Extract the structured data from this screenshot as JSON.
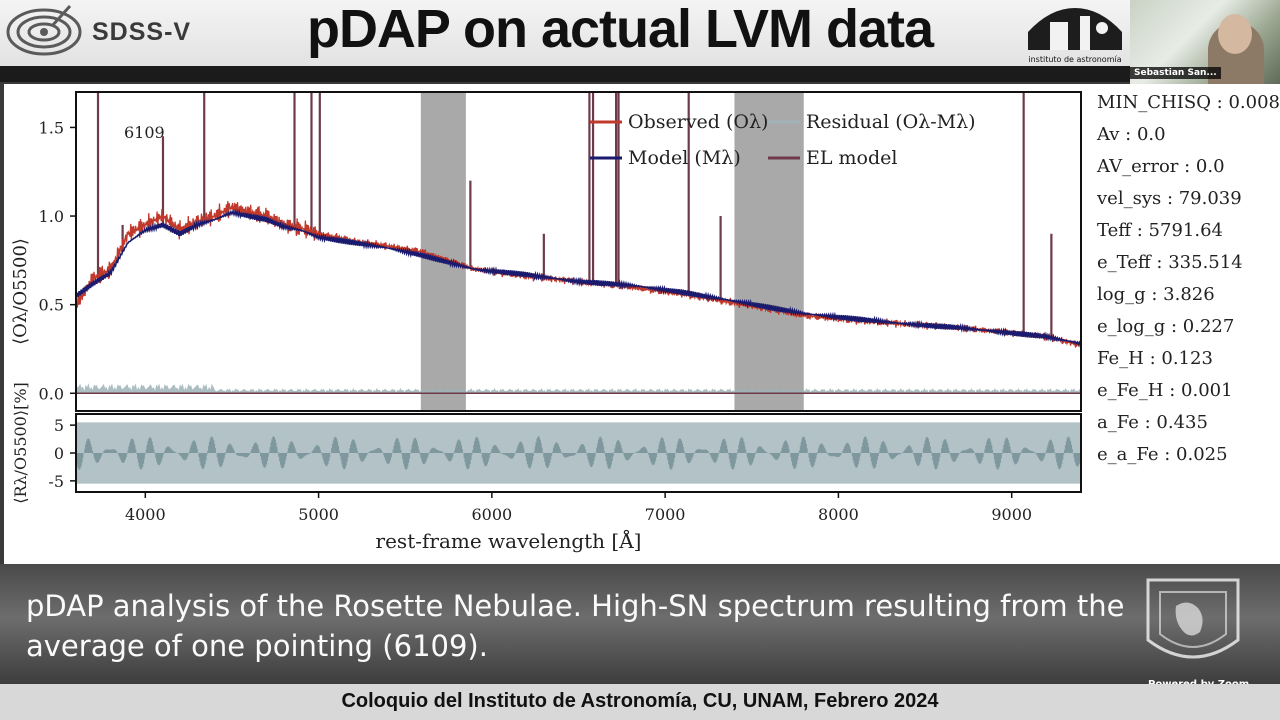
{
  "header": {
    "logo_text": "SDSS-V",
    "title": "pDAP on actual LVM data",
    "institute_text": "instituto de astronomía"
  },
  "video": {
    "participant": "Sebastian San..."
  },
  "params": [
    "MIN_CHISQ : 0.008",
    "Av : 0.0",
    "AV_error : 0.0",
    "vel_sys : 79.039",
    "Teff : 5791.64",
    "e_Teff : 335.514",
    "log_g : 3.826",
    "e_log_g : 0.227",
    "Fe_H : 0.123",
    "e_Fe_H : 0.001",
    "a_Fe : 0.435",
    "e_a_Fe : 0.025"
  ],
  "caption": "pDAP analysis of the Rosette Nebulae. High-SN spectrum resulting from the average of one pointing (6109).",
  "footer": "Coloquio del Instituto de Astronomía, CU, UNAM, Febrero 2024",
  "zoom_label": "Powered by Zoom",
  "colors": {
    "observed": "#c0392b",
    "model": "#1a1a6e",
    "residual": "#9fb3b8",
    "el_model": "#6e3a4a",
    "mask": "#a0a0a0"
  },
  "chart_data": {
    "type": "line",
    "annotation": "6109",
    "xlabel": "rest-frame wavelength [Å]",
    "ylabel_top": "⟨Oλ/O5500⟩",
    "ylabel_bottom": "⟨Rλ/O5500⟩[%]",
    "xlim": [
      3600,
      9400
    ],
    "ylim_top": [
      -0.1,
      1.7
    ],
    "ylim_bottom": [
      -7,
      7
    ],
    "x_ticks": [
      "4000",
      "5000",
      "6000",
      "7000",
      "8000",
      "9000"
    ],
    "y_ticks_top": [
      "0.0",
      "0.5",
      "1.0",
      "1.5"
    ],
    "y_ticks_bottom": [
      "-5",
      "0",
      "5"
    ],
    "legend": [
      "Observed (Oλ)",
      "Model (Mλ)",
      "Residual (Oλ-Mλ)",
      "EL model"
    ],
    "legend_position": "top-center",
    "masked_regions": [
      [
        5590,
        5850
      ],
      [
        7400,
        7800
      ]
    ],
    "series": [
      {
        "name": "Model (Mλ)",
        "x": [
          3600,
          3700,
          3800,
          3900,
          4000,
          4100,
          4200,
          4300,
          4400,
          4500,
          4600,
          4700,
          4800,
          4900,
          5000,
          5200,
          5400,
          5590,
          5900,
          6200,
          6500,
          6800,
          7100,
          7400,
          7800,
          8100,
          8400,
          8700,
          9000,
          9200,
          9400
        ],
        "values": [
          0.55,
          0.62,
          0.68,
          0.85,
          0.92,
          0.95,
          0.9,
          0.95,
          0.98,
          1.02,
          1.0,
          0.98,
          0.94,
          0.92,
          0.88,
          0.85,
          0.82,
          0.78,
          0.7,
          0.67,
          0.63,
          0.61,
          0.57,
          0.52,
          0.45,
          0.42,
          0.39,
          0.37,
          0.34,
          0.32,
          0.28
        ]
      },
      {
        "name": "Observed (Oλ)",
        "x": [
          3600,
          3700,
          3800,
          3900,
          4000,
          4100,
          4200,
          4300,
          4400,
          4500,
          4600,
          4700,
          4800,
          4900,
          5000,
          5200,
          5400,
          5590,
          5900,
          6200,
          6500,
          6800,
          7100,
          7400,
          7800,
          8100,
          8400,
          8700,
          9000,
          9200,
          9400
        ],
        "values": [
          0.5,
          0.65,
          0.7,
          0.9,
          0.95,
          1.0,
          0.92,
          0.97,
          1.0,
          1.05,
          1.02,
          1.0,
          0.95,
          0.93,
          0.9,
          0.86,
          0.83,
          0.8,
          0.7,
          0.66,
          0.63,
          0.6,
          0.56,
          0.51,
          0.44,
          0.41,
          0.39,
          0.37,
          0.34,
          0.32,
          0.27
        ]
      }
    ],
    "emission_lines": [
      {
        "x": 3727,
        "peak": 1.7
      },
      {
        "x": 3869,
        "peak": 0.95
      },
      {
        "x": 4102,
        "peak": 1.45
      },
      {
        "x": 4340,
        "peak": 1.7
      },
      {
        "x": 4861,
        "peak": 1.7
      },
      {
        "x": 4959,
        "peak": 1.7
      },
      {
        "x": 5007,
        "peak": 1.7
      },
      {
        "x": 5876,
        "peak": 1.2
      },
      {
        "x": 6300,
        "peak": 0.9
      },
      {
        "x": 6563,
        "peak": 1.7
      },
      {
        "x": 6584,
        "peak": 1.7
      },
      {
        "x": 6717,
        "peak": 1.7
      },
      {
        "x": 6731,
        "peak": 1.7
      },
      {
        "x": 7136,
        "peak": 1.7
      },
      {
        "x": 7320,
        "peak": 1.0
      },
      {
        "x": 9069,
        "peak": 1.7
      },
      {
        "x": 9229,
        "peak": 0.9
      }
    ]
  }
}
